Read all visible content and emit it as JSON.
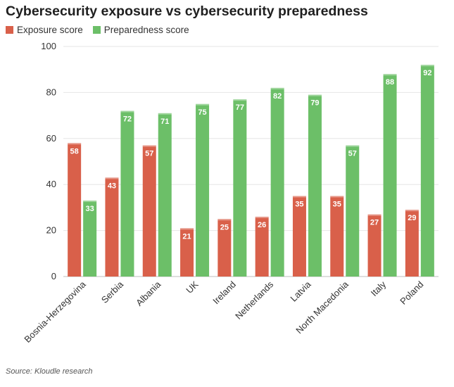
{
  "chart_data": {
    "type": "bar",
    "title": "Cybersecurity exposure vs cybersecurity preparedness",
    "categories": [
      "Bosnia-Herzegovina",
      "Serbia",
      "Albania",
      "UK",
      "Ireland",
      "Netherlands",
      "Latvia",
      "North Macedonia",
      "Italy",
      "Poland"
    ],
    "series": [
      {
        "name": "Exposure score",
        "color": "#d9604a",
        "values": [
          58,
          43,
          57,
          21,
          25,
          26,
          35,
          35,
          27,
          29
        ]
      },
      {
        "name": "Preparedness score",
        "color": "#6cbf68",
        "values": [
          33,
          72,
          71,
          75,
          77,
          82,
          79,
          57,
          88,
          92
        ]
      }
    ],
    "ylim": [
      0,
      100
    ],
    "yticks": [
      0,
      20,
      40,
      60,
      80,
      100
    ],
    "xlabel": "",
    "ylabel": "",
    "grid": true,
    "legend_position": "top-left",
    "source": "Source: Kloudle research"
  }
}
